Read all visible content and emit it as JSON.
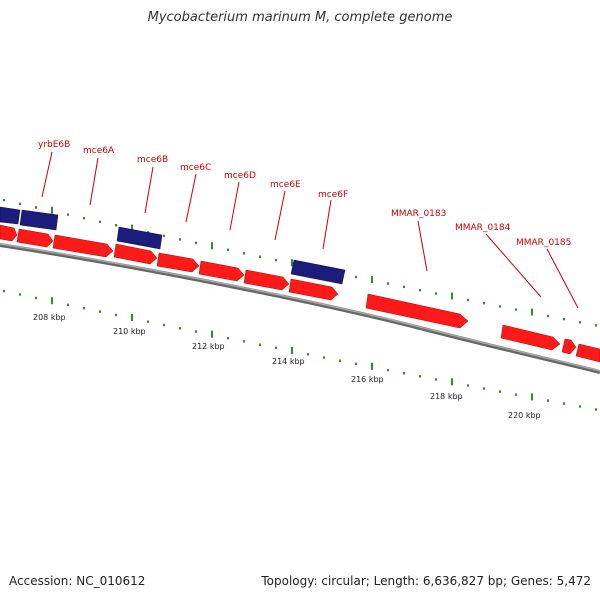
{
  "title": "Mycobacterium marinum M, complete genome",
  "footer": {
    "accession": "Accession: NC_010612",
    "stats": "Topology: circular; Length: 6,636,827 bp; Genes: 5,472"
  },
  "colors": {
    "forward_gene": "#ff1a1a",
    "reverse_gene": "#1c1c7c",
    "backbone": "#888888",
    "tick": "#2e8b2e",
    "label": "#cc0000"
  },
  "genes": [
    {
      "label": "yrbE6B",
      "strand": "reverse"
    },
    {
      "label": "mce6A",
      "strand": "forward"
    },
    {
      "label": "mce6B",
      "strand": "reverse"
    },
    {
      "label": "mce6C",
      "strand": "forward"
    },
    {
      "label": "mce6D",
      "strand": "forward"
    },
    {
      "label": "mce6E",
      "strand": "forward"
    },
    {
      "label": "mce6F",
      "strand": "reverse"
    },
    {
      "label": "MMAR_0183",
      "strand": "forward"
    },
    {
      "label": "MMAR_0184",
      "strand": "forward"
    },
    {
      "label": "MMAR_0185",
      "strand": "forward"
    }
  ],
  "kbp_ticks": [
    "208 kbp",
    "210 kbp",
    "212 kbp",
    "214 kbp",
    "216 kbp",
    "218 kbp",
    "220 kbp"
  ]
}
